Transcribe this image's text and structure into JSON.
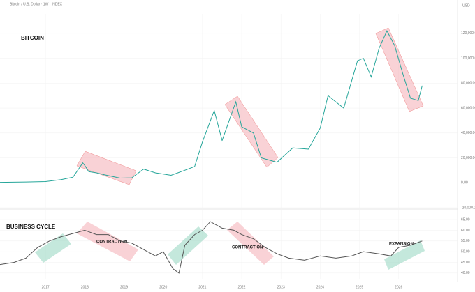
{
  "header": {
    "symbol": "Bitcoin / U.S. Dollar · 1W · INDEX",
    "currency": "USD"
  },
  "annotations": [
    "BITCOIN",
    "BUSINESS CYCLE",
    "CONTRACTION",
    "CONTRACTION",
    "EXPANSION"
  ],
  "chart_data": [
    {
      "type": "line",
      "color": "#26a69a",
      "x": [
        2015.84,
        2016.0,
        2016.5,
        2017.0,
        2017.4,
        2017.7,
        2017.95,
        2018.0,
        2018.1,
        2018.3,
        2018.5,
        2018.9,
        2019.2,
        2019.5,
        2019.8,
        2020.2,
        2020.5,
        2020.8,
        2021.0,
        2021.3,
        2021.5,
        2021.85,
        2022.0,
        2022.3,
        2022.5,
        2022.9,
        2023.3,
        2023.7,
        2024.0,
        2024.2,
        2024.6,
        2024.95,
        2025.1,
        2025.3,
        2025.5,
        2025.7,
        2025.9,
        2026.1,
        2026.3,
        2026.5,
        2026.6
      ],
      "values": [
        400,
        430,
        650,
        1000,
        2500,
        4500,
        16000,
        14000,
        9000,
        8000,
        6500,
        3800,
        4000,
        11000,
        8000,
        6000,
        9500,
        13000,
        33000,
        58000,
        34000,
        65000,
        45000,
        40000,
        20000,
        16500,
        28000,
        27000,
        44000,
        70000,
        60000,
        98000,
        100000,
        85000,
        108000,
        122000,
        110000,
        88000,
        68000,
        66000,
        78000
      ],
      "xlim": [
        2015.84,
        2027.5
      ],
      "ylim": [
        -20000,
        130000
      ],
      "yticks": [
        {
          "value": -20000,
          "label": "-20,000.00"
        },
        {
          "value": 0,
          "label": "0.00"
        },
        {
          "value": 20000,
          "label": "20,000.00"
        },
        {
          "value": 40000,
          "label": "40,000.00"
        },
        {
          "value": 60000,
          "label": "60,000.00"
        },
        {
          "value": 80000,
          "label": "80,000.00"
        },
        {
          "value": 100000,
          "label": "100,000.00"
        },
        {
          "value": 120000,
          "label": "120,000.00"
        }
      ]
    },
    {
      "type": "line",
      "color": "#555555",
      "x": [
        2015.84,
        2016.2,
        2016.5,
        2016.8,
        2017.1,
        2017.4,
        2017.8,
        2018.0,
        2018.3,
        2018.6,
        2018.9,
        2019.2,
        2019.5,
        2019.8,
        2020.0,
        2020.25,
        2020.4,
        2020.55,
        2020.8,
        2021.0,
        2021.2,
        2021.5,
        2021.8,
        2022.0,
        2022.3,
        2022.6,
        2022.9,
        2023.2,
        2023.6,
        2024.0,
        2024.4,
        2024.8,
        2025.1,
        2025.5,
        2025.8,
        2026.0,
        2026.3,
        2026.6
      ],
      "values": [
        44,
        45,
        47,
        52,
        55,
        57,
        59,
        60,
        58,
        58,
        55,
        54,
        51,
        48,
        50,
        42,
        40,
        53,
        58,
        60,
        64,
        61,
        60,
        58,
        56,
        52,
        49,
        47,
        46,
        48,
        47,
        48,
        50,
        49,
        48,
        52,
        53,
        55
      ],
      "xlim": [
        2015.84,
        2027.5
      ],
      "ylim": [
        38,
        66
      ],
      "yticks": [
        {
          "value": 40,
          "label": "40.00"
        },
        {
          "value": 45,
          "label": "45.00"
        },
        {
          "value": 50,
          "label": "50.00"
        },
        {
          "value": 55,
          "label": "55.00"
        },
        {
          "value": 60,
          "label": "60.00"
        },
        {
          "value": 65,
          "label": "65.00"
        }
      ],
      "xticks": [
        2017,
        2018,
        2019,
        2020,
        2021,
        2022,
        2023,
        2024,
        2025,
        2026
      ]
    }
  ]
}
